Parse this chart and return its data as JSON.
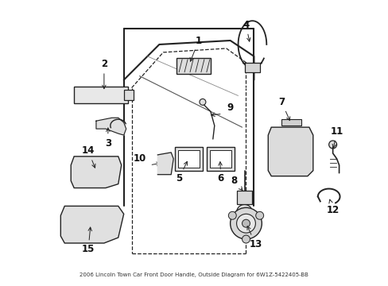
{
  "title": "2006 Lincoln Town Car Front Door Handle, Outside Diagram for 6W1Z-5422405-BB",
  "bg_color": "#ffffff",
  "lc": "#222222",
  "figsize": [
    4.89,
    3.6
  ],
  "dpi": 100
}
